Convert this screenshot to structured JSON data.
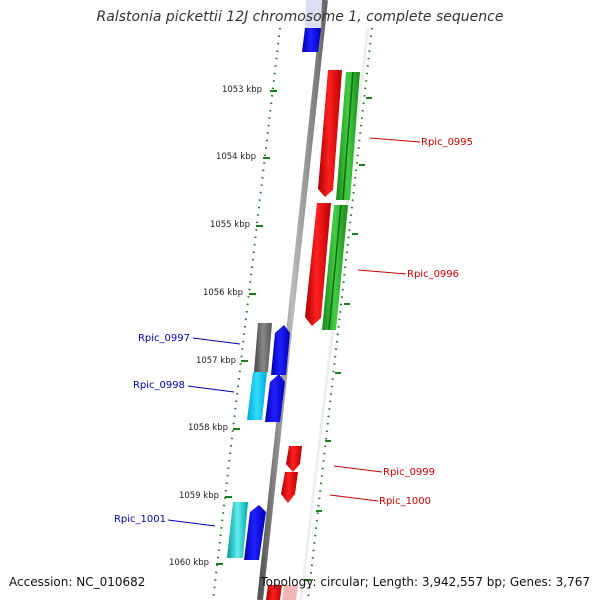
{
  "title": "Ralstonia pickettii 12J chromosome 1, complete sequence",
  "accession": "Accession: NC_010682",
  "summary": "Topology: circular; Length: 3,942,557 bp; Genes: 3,767",
  "colors": {
    "background": "#ffffff",
    "backbone": "#888888",
    "forward_label": "#cc0000",
    "reverse_label": "#0000aa",
    "tick": "#1a7f1a"
  },
  "scale": {
    "labels": [
      "1053 kbp",
      "1054 kbp",
      "1055 kbp",
      "1056 kbp",
      "1057 kbp",
      "1058 kbp",
      "1059 kbp",
      "1060 kbp"
    ]
  },
  "genes": [
    {
      "label": "Rpic_0995",
      "strand": "forward",
      "color": "#ee0000"
    },
    {
      "label": "Rpic_0996",
      "strand": "forward",
      "color": "#ee0000"
    },
    {
      "label": "Rpic_0997",
      "strand": "reverse",
      "color": "#0000ee"
    },
    {
      "label": "Rpic_0998",
      "strand": "reverse",
      "color": "#0000ee"
    },
    {
      "label": "Rpic_0999",
      "strand": "forward",
      "color": "#ee0000"
    },
    {
      "label": "Rpic_1000",
      "strand": "forward",
      "color": "#ee0000"
    },
    {
      "label": "Rpic_1001",
      "strand": "reverse",
      "color": "#0000ee"
    }
  ]
}
